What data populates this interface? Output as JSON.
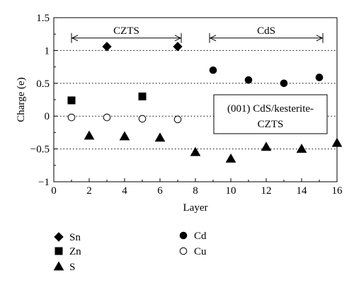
{
  "chart_data": {
    "type": "scatter",
    "xlabel": "Layer",
    "ylabel": "Charge (e)",
    "xlim": [
      0,
      16
    ],
    "ylim": [
      -1,
      1.5
    ],
    "x_ticks": [
      "0",
      "2",
      "4",
      "6",
      "8",
      "10",
      "12",
      "14",
      "16"
    ],
    "y_ticks": [
      "1.5",
      "1",
      "0.5",
      "0",
      "−0.5",
      "−1"
    ],
    "grid": "dotted horizontal lines at y = 1, 0.5, 0, -0.5",
    "series": [
      {
        "name": "Sn",
        "marker": "diamond",
        "fill": "#000000",
        "points": [
          [
            3,
            1.06
          ],
          [
            7,
            1.06
          ]
        ]
      },
      {
        "name": "Zn",
        "marker": "square",
        "fill": "#000000",
        "points": [
          [
            1,
            0.24
          ],
          [
            5,
            0.3
          ]
        ]
      },
      {
        "name": "S",
        "marker": "triangle",
        "fill": "#000000",
        "points": [
          [
            2,
            -0.3
          ],
          [
            4,
            -0.31
          ],
          [
            6,
            -0.33
          ],
          [
            8,
            -0.55
          ],
          [
            10,
            -0.65
          ],
          [
            12,
            -0.47
          ],
          [
            14,
            -0.5
          ],
          [
            16,
            -0.41
          ]
        ]
      },
      {
        "name": "Cd",
        "marker": "circle",
        "fill": "#000000",
        "points": [
          [
            9,
            0.7
          ],
          [
            11,
            0.55
          ],
          [
            13,
            0.5
          ],
          [
            15,
            0.59
          ]
        ]
      },
      {
        "name": "Cu",
        "marker": "circle",
        "fill": "#ffffff",
        "points": [
          [
            1,
            -0.02
          ],
          [
            3,
            -0.02
          ],
          [
            5,
            -0.04
          ],
          [
            7,
            -0.05
          ]
        ]
      }
    ],
    "regions": [
      {
        "label": "CZTS",
        "x_start": 1,
        "x_end": 7.2
      },
      {
        "label": "CdS",
        "x_start": 8.8,
        "x_end": 15.2
      }
    ],
    "annotation": {
      "line1": "(001) CdS/kesterite-",
      "line2": "CZTS"
    },
    "legend_placement": "below"
  }
}
